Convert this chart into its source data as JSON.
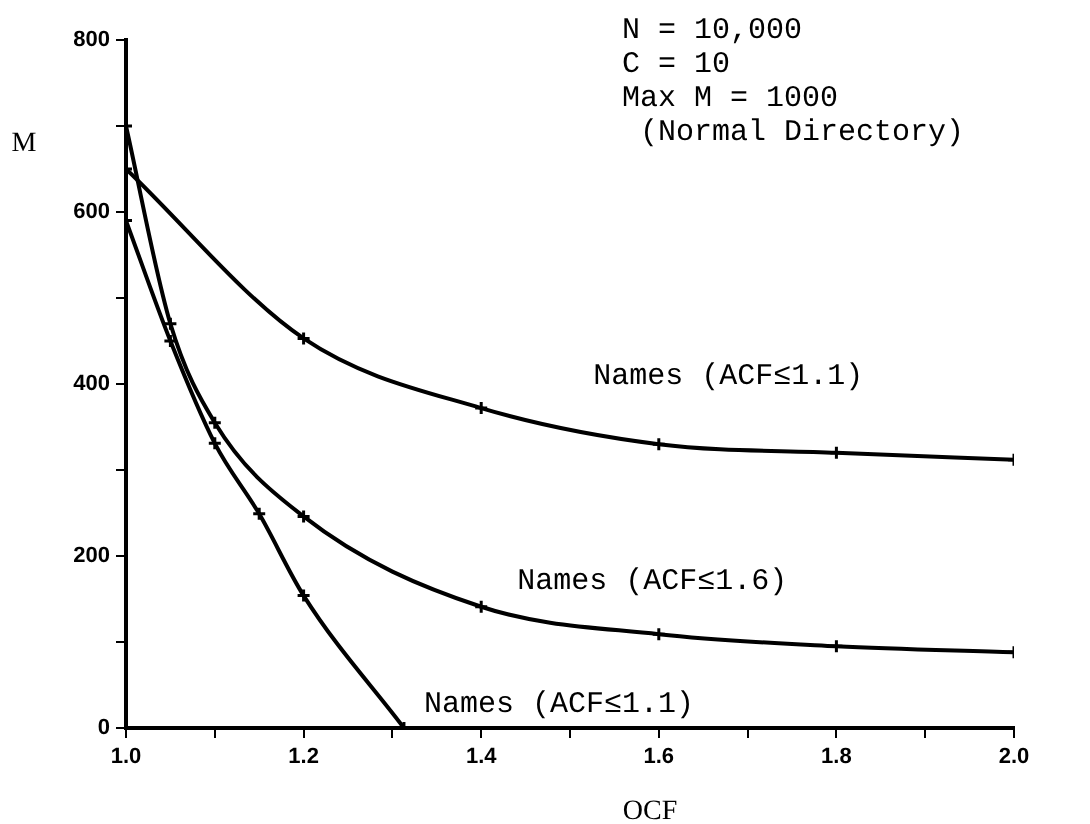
{
  "chart_data": {
    "type": "line",
    "xlabel": "OCF",
    "ylabel": "M",
    "annotations": [
      "N = 10,000",
      "C = 10",
      "Max M = 1000",
      " (Normal Directory)"
    ],
    "xlim": [
      1.0,
      2.0
    ],
    "xticks": [
      {
        "value": 1.0,
        "label": "1.0"
      },
      {
        "value": 1.1,
        "label": null
      },
      {
        "value": 1.2,
        "label": "1.2"
      },
      {
        "value": 1.3,
        "label": null
      },
      {
        "value": 1.4,
        "label": "1.4"
      },
      {
        "value": 1.5,
        "label": null
      },
      {
        "value": 1.6,
        "label": "1.6"
      },
      {
        "value": 1.7,
        "label": null
      },
      {
        "value": 1.8,
        "label": "1.8"
      },
      {
        "value": 1.9,
        "label": null
      },
      {
        "value": 2.0,
        "label": "2.0"
      }
    ],
    "ylim": [
      0,
      800
    ],
    "yticks": [
      0,
      {
        "value": 100,
        "label": null
      },
      200,
      {
        "value": 300,
        "label": null
      },
      400,
      {
        "value": 500,
        "label": null
      },
      600,
      {
        "value": 700,
        "label": null
      },
      800
    ],
    "grid": false,
    "legend": false,
    "marker": "cross",
    "line_style": "solid",
    "series": [
      {
        "name": "Names (ACF≤1.1)",
        "color": "#000000",
        "x": [
          1.0,
          1.2,
          1.4,
          1.6,
          1.8,
          2.0
        ],
        "values": [
          650,
          453,
          372,
          330,
          320,
          312
        ]
      },
      {
        "name": "Names (ACF≤1.6)",
        "color": "#000000",
        "x": [
          1.0,
          1.05,
          1.1,
          1.2,
          1.4,
          1.6,
          1.8,
          2.0
        ],
        "values": [
          700,
          470,
          355,
          246,
          141,
          109,
          95,
          88
        ]
      },
      {
        "name": "Names (ACF≤1.1)",
        "color": "#000000",
        "x": [
          1.0,
          1.05,
          1.1,
          1.15,
          1.2,
          1.313
        ],
        "values": [
          590,
          450,
          331,
          249,
          154,
          0
        ]
      }
    ]
  }
}
